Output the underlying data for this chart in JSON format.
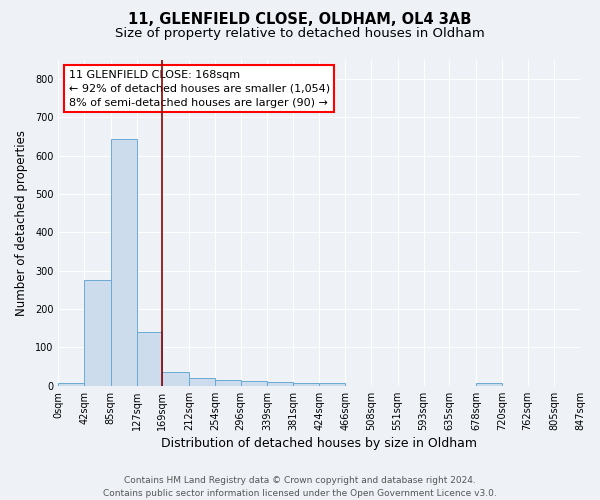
{
  "title_line1": "11, GLENFIELD CLOSE, OLDHAM, OL4 3AB",
  "title_line2": "Size of property relative to detached houses in Oldham",
  "xlabel": "Distribution of detached houses by size in Oldham",
  "ylabel": "Number of detached properties",
  "bar_edges": [
    0,
    42,
    85,
    127,
    169,
    212,
    254,
    296,
    339,
    381,
    424,
    466,
    508,
    551,
    593,
    635,
    678,
    720,
    762,
    805,
    847
  ],
  "bar_heights": [
    8,
    275,
    645,
    140,
    37,
    20,
    14,
    12,
    9,
    7,
    7,
    0,
    0,
    0,
    0,
    0,
    7,
    0,
    0,
    0
  ],
  "bar_color": "#ccdcec",
  "bar_edgecolor": "#6aaad4",
  "vline_x": 168,
  "vline_color": "#8b0000",
  "annotation_text": "11 GLENFIELD CLOSE: 168sqm\n← 92% of detached houses are smaller (1,054)\n8% of semi-detached houses are larger (90) →",
  "ylim": [
    0,
    850
  ],
  "yticks": [
    0,
    100,
    200,
    300,
    400,
    500,
    600,
    700,
    800
  ],
  "background_color": "#eef2f7",
  "plot_background": "#eef2f7",
  "grid_color": "#ffffff",
  "footer_text": "Contains HM Land Registry data © Crown copyright and database right 2024.\nContains public sector information licensed under the Open Government Licence v3.0.",
  "title_fontsize": 10.5,
  "subtitle_fontsize": 9.5,
  "xlabel_fontsize": 9,
  "ylabel_fontsize": 8.5,
  "tick_fontsize": 7,
  "footer_fontsize": 6.5,
  "annotation_fontsize": 8
}
